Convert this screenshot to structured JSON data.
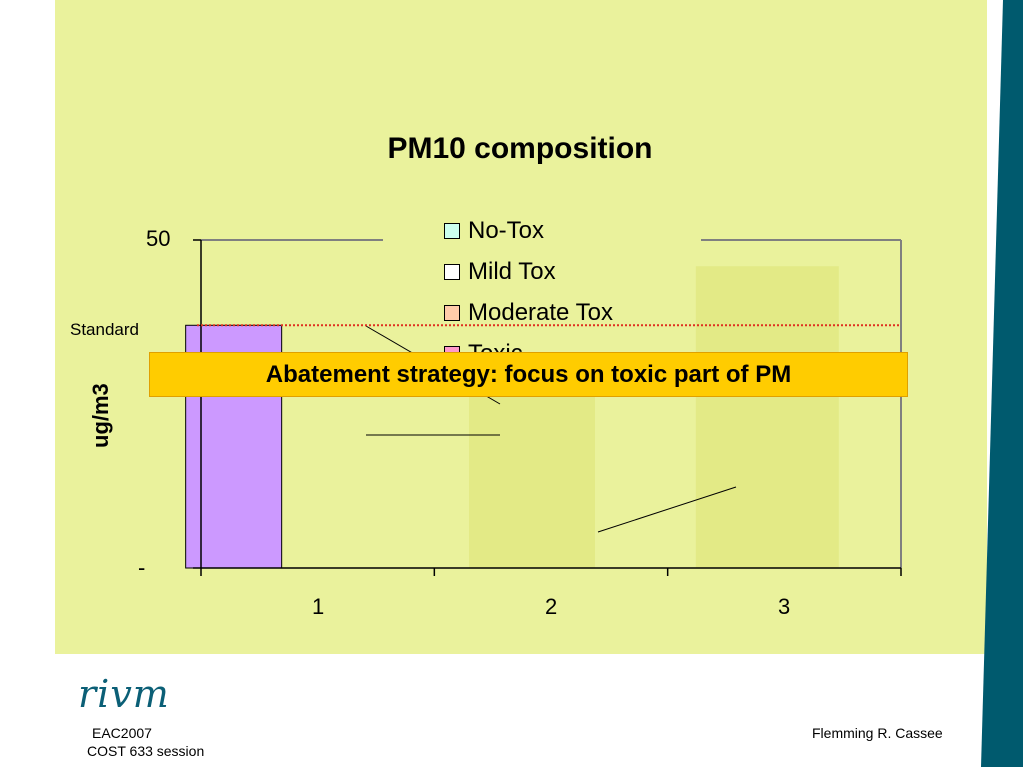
{
  "chart_data": {
    "type": "bar",
    "title": "PM10 composition",
    "ylabel": "ug/m3",
    "xlabel": "",
    "categories": [
      "1",
      "2",
      "3"
    ],
    "ytick_labels": [
      "-",
      "50"
    ],
    "ylim": [
      0,
      50
    ],
    "series": [
      {
        "name": "No-Tox",
        "color": "#ccffee",
        "values": [
          0,
          0,
          0
        ]
      },
      {
        "name": "Mild Tox",
        "color": "#ffffff",
        "values": [
          0,
          0,
          0
        ]
      },
      {
        "name": "Moderate Tox",
        "color": "#ffccaa",
        "values": [
          0,
          0,
          0
        ]
      },
      {
        "name": "Toxic",
        "color": "#ff99cc",
        "values": [
          0,
          0,
          0
        ]
      }
    ],
    "bar_color_1": "#cc99ff",
    "totals": [
      37,
      29,
      46
    ],
    "standard_value": 37,
    "standard_label": "Standard",
    "legend_position": "top-right",
    "grid": false
  },
  "banner": {
    "text": "Abatement strategy: focus on toxic part of PM"
  },
  "footer": {
    "logo": "rivm",
    "event": "EAC2007",
    "session": "COST 633 session",
    "author": "Flemming R. Cassee"
  },
  "colors": {
    "panel": "#eaf29c",
    "band": "#005a6e",
    "accent": "#ffcc00"
  }
}
